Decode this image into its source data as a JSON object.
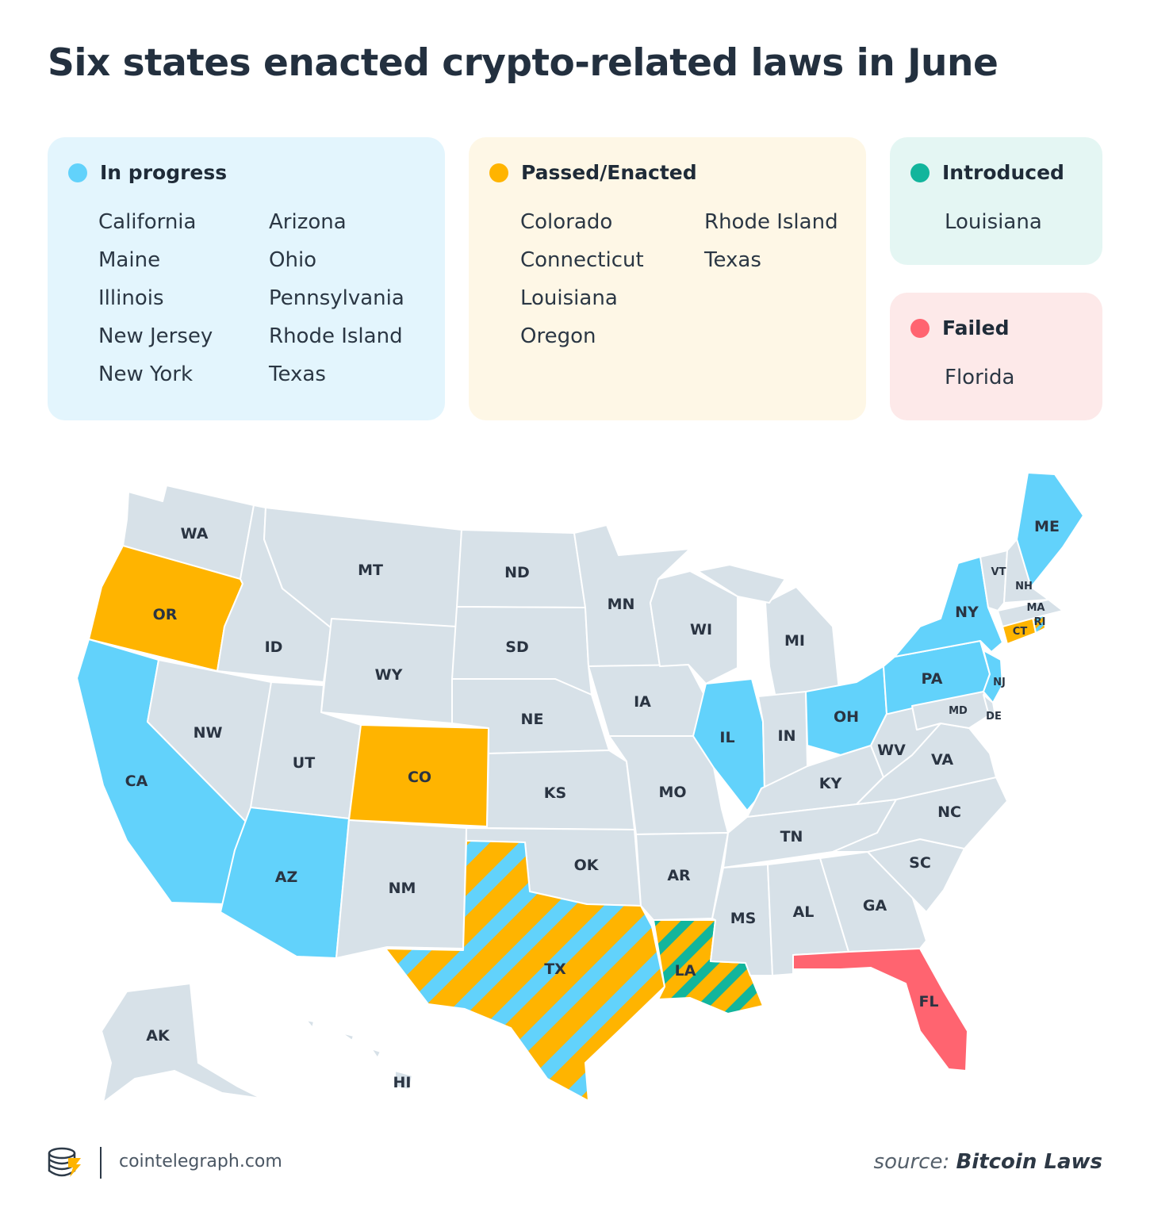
{
  "title": "Six states enacted crypto-related laws in June",
  "legend": {
    "in_progress": {
      "label": "In progress",
      "color": "#62d2fb",
      "col1": [
        "California",
        "Maine",
        "Illinois",
        "New Jersey",
        "New York"
      ],
      "col2": [
        "Arizona",
        "Ohio",
        "Pennsylvania",
        "Rhode Island",
        "Texas"
      ]
    },
    "passed": {
      "label": "Passed/Enacted",
      "color": "#ffb400",
      "col1": [
        "Colorado",
        "Connecticut",
        "Louisiana",
        "Oregon"
      ],
      "col2": [
        "Rhode Island",
        "Texas"
      ]
    },
    "introduced": {
      "label": "Introduced",
      "color": "#12b59c",
      "states": [
        "Louisiana"
      ]
    },
    "failed": {
      "label": "Failed",
      "color": "#ff6470",
      "states": [
        "Florida"
      ]
    }
  },
  "map": {
    "neutral_color": "#d7e1e8",
    "states": [
      {
        "abbr": "WA",
        "status": "none"
      },
      {
        "abbr": "OR",
        "status": "passed"
      },
      {
        "abbr": "CA",
        "status": "in_progress"
      },
      {
        "abbr": "ID",
        "status": "none"
      },
      {
        "abbr": "NW",
        "status": "none"
      },
      {
        "abbr": "MT",
        "status": "none"
      },
      {
        "abbr": "WY",
        "status": "none"
      },
      {
        "abbr": "UT",
        "status": "none"
      },
      {
        "abbr": "AZ",
        "status": "in_progress"
      },
      {
        "abbr": "CO",
        "status": "passed"
      },
      {
        "abbr": "NM",
        "status": "none"
      },
      {
        "abbr": "ND",
        "status": "none"
      },
      {
        "abbr": "SD",
        "status": "none"
      },
      {
        "abbr": "NE",
        "status": "none"
      },
      {
        "abbr": "KS",
        "status": "none"
      },
      {
        "abbr": "OK",
        "status": "none"
      },
      {
        "abbr": "TX",
        "status": "in_progress+passed"
      },
      {
        "abbr": "MN",
        "status": "none"
      },
      {
        "abbr": "IA",
        "status": "none"
      },
      {
        "abbr": "MO",
        "status": "none"
      },
      {
        "abbr": "AR",
        "status": "none"
      },
      {
        "abbr": "LA",
        "status": "passed+introduced"
      },
      {
        "abbr": "WI",
        "status": "none"
      },
      {
        "abbr": "IL",
        "status": "in_progress"
      },
      {
        "abbr": "MI",
        "status": "none"
      },
      {
        "abbr": "IN",
        "status": "none"
      },
      {
        "abbr": "OH",
        "status": "in_progress"
      },
      {
        "abbr": "KY",
        "status": "none"
      },
      {
        "abbr": "TN",
        "status": "none"
      },
      {
        "abbr": "MS",
        "status": "none"
      },
      {
        "abbr": "AL",
        "status": "none"
      },
      {
        "abbr": "GA",
        "status": "none"
      },
      {
        "abbr": "FL",
        "status": "failed"
      },
      {
        "abbr": "SC",
        "status": "none"
      },
      {
        "abbr": "NC",
        "status": "none"
      },
      {
        "abbr": "VA",
        "status": "none"
      },
      {
        "abbr": "WV",
        "status": "none"
      },
      {
        "abbr": "PA",
        "status": "in_progress"
      },
      {
        "abbr": "NY",
        "status": "in_progress"
      },
      {
        "abbr": "NJ",
        "status": "in_progress"
      },
      {
        "abbr": "MD",
        "status": "none"
      },
      {
        "abbr": "DE",
        "status": "none"
      },
      {
        "abbr": "CT",
        "status": "passed"
      },
      {
        "abbr": "RI",
        "status": "in_progress+passed"
      },
      {
        "abbr": "MA",
        "status": "none"
      },
      {
        "abbr": "VT",
        "status": "none"
      },
      {
        "abbr": "NH",
        "status": "none"
      },
      {
        "abbr": "ME",
        "status": "in_progress"
      },
      {
        "abbr": "AK",
        "status": "none"
      },
      {
        "abbr": "HI",
        "status": "none"
      }
    ]
  },
  "footer": {
    "site": "cointelegraph.com",
    "source_prefix": "source:",
    "source_name": "Bitcoin Laws"
  }
}
